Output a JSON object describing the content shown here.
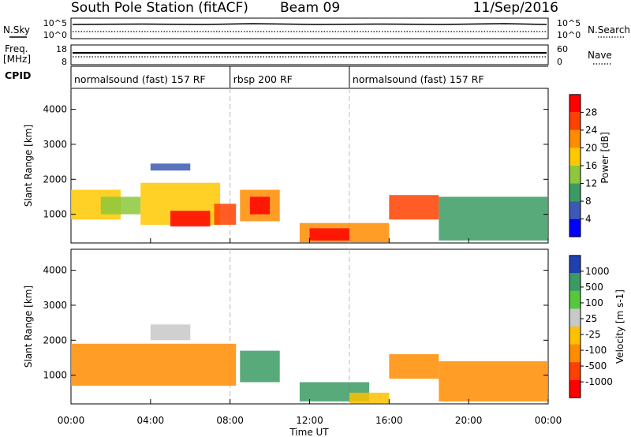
{
  "header": {
    "station": "South Pole Station (fitACF)",
    "beam": "Beam 09",
    "date": "11/Sep/2016"
  },
  "left_labels": {
    "nsky": "N.Sky",
    "freq_line1": "Freq.",
    "freq_line2": "[MHz]",
    "cpid": "CPID"
  },
  "right_labels": {
    "nsearch": "N.Search",
    "nave": "Nave"
  },
  "noise_axis": {
    "left_ticks": [
      "10^5",
      "10^0"
    ],
    "right_ticks": [
      "10^5",
      "10^0"
    ]
  },
  "freq_axis": {
    "left_ticks": [
      "18",
      "8"
    ],
    "right_ticks": [
      "60",
      "0"
    ]
  },
  "cpid_segments": [
    {
      "label": "normalsound (fast) 157 RF",
      "start_hour": 0,
      "end_hour": 8
    },
    {
      "label": "rbsp 200 RF",
      "start_hour": 8,
      "end_hour": 14
    },
    {
      "label": "normalsound (fast) 157 RF",
      "start_hour": 14,
      "end_hour": 24
    }
  ],
  "x_axis": {
    "label": "Time UT",
    "ticks": [
      "00:00",
      "04:00",
      "08:00",
      "12:00",
      "16:00",
      "20:00",
      "00:00"
    ]
  },
  "chart_data": [
    {
      "type": "heatmap",
      "panel": "power",
      "ylabel": "Slant Range [km]",
      "yticks": [
        1000,
        2000,
        3000,
        4000
      ],
      "ylim": [
        180,
        4600
      ],
      "xlim_hours": [
        0,
        24
      ],
      "colorbar_label": "Power [dB]",
      "colorbar_ticks": [
        "28",
        "24",
        "20",
        "16",
        "12",
        "8",
        "4"
      ],
      "colorbar_colors": [
        "#ff0000",
        "#ff4000",
        "#ff8c00",
        "#ffc800",
        "#8cc83c",
        "#3c9b64",
        "#3c5ab4",
        "#0000ff"
      ],
      "regions": [
        {
          "t0": 0.0,
          "t1": 2.5,
          "r0": 850,
          "r1": 1700,
          "level": 3
        },
        {
          "t0": 1.5,
          "t1": 3.5,
          "r0": 1000,
          "r1": 1500,
          "level": 4
        },
        {
          "t0": 3.5,
          "t1": 7.5,
          "r0": 700,
          "r1": 1900,
          "level": 3
        },
        {
          "t0": 5.0,
          "t1": 7.0,
          "r0": 650,
          "r1": 1100,
          "level": 0
        },
        {
          "t0": 4.0,
          "t1": 6.0,
          "r0": 2250,
          "r1": 2450,
          "level": 6
        },
        {
          "t0": 7.2,
          "t1": 8.3,
          "r0": 700,
          "r1": 1300,
          "level": 1
        },
        {
          "t0": 8.5,
          "t1": 10.5,
          "r0": 800,
          "r1": 1700,
          "level": 2
        },
        {
          "t0": 9.0,
          "t1": 10.0,
          "r0": 1000,
          "r1": 1500,
          "level": 0
        },
        {
          "t0": 11.5,
          "t1": 16.0,
          "r0": 200,
          "r1": 750,
          "level": 2
        },
        {
          "t0": 12.0,
          "t1": 14.0,
          "r0": 250,
          "r1": 600,
          "level": 0
        },
        {
          "t0": 16.0,
          "t1": 18.5,
          "r0": 850,
          "r1": 1550,
          "level": 1
        },
        {
          "t0": 18.5,
          "t1": 24.0,
          "r0": 250,
          "r1": 1500,
          "level": 5
        }
      ]
    },
    {
      "type": "heatmap",
      "panel": "velocity",
      "ylabel": "Slant Range [km]",
      "yticks": [
        1000,
        2000,
        3000,
        4000
      ],
      "ylim": [
        180,
        4600
      ],
      "xlim_hours": [
        0,
        24
      ],
      "colorbar_label": "Velocity [m s-1]",
      "colorbar_ticks": [
        "1000",
        "500",
        "100",
        "25",
        "-25",
        "-100",
        "-500",
        "-1000"
      ],
      "colorbar_colors": [
        "#2040b0",
        "#3c9b64",
        "#55c83c",
        "#c8c8c8",
        "#ffc000",
        "#ff8c00",
        "#ff4000",
        "#ff0000"
      ],
      "regions": [
        {
          "t0": 0.0,
          "t1": 8.3,
          "r0": 700,
          "r1": 1900,
          "level": 5
        },
        {
          "t0": 4.0,
          "t1": 6.0,
          "r0": 2000,
          "r1": 2450,
          "level": 3
        },
        {
          "t0": 8.5,
          "t1": 10.5,
          "r0": 800,
          "r1": 1700,
          "level": 1
        },
        {
          "t0": 11.5,
          "t1": 15.0,
          "r0": 250,
          "r1": 800,
          "level": 1
        },
        {
          "t0": 14.0,
          "t1": 16.0,
          "r0": 200,
          "r1": 500,
          "level": 4
        },
        {
          "t0": 16.0,
          "t1": 18.5,
          "r0": 900,
          "r1": 1600,
          "level": 5
        },
        {
          "t0": 18.5,
          "t1": 24.0,
          "r0": 250,
          "r1": 1400,
          "level": 5
        }
      ]
    }
  ]
}
